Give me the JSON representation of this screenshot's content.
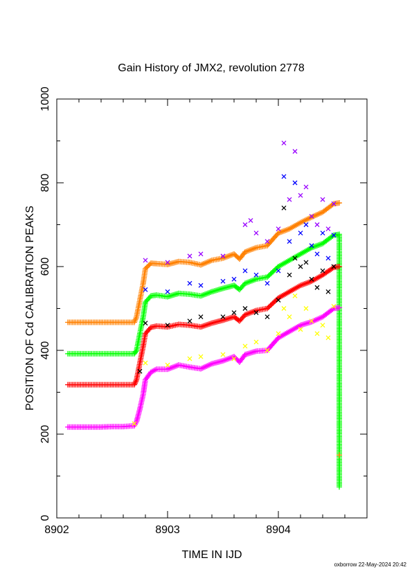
{
  "chart_data": {
    "type": "scatter",
    "title": "Gain History of JMX2, revolution 2778",
    "xlabel": "TIME IN IJD",
    "ylabel": "POSITION OF Cd CALIBRATION PEAKS",
    "xlim": [
      8902,
      8904.8
    ],
    "ylim": [
      0,
      1000
    ],
    "x_ticks": [
      "8902",
      "8903",
      "8904"
    ],
    "y_ticks": [
      "0",
      "200",
      "400",
      "600",
      "800",
      "1000"
    ],
    "grid": false,
    "legend": "none",
    "credit": "oxborrow 22-May-2024 20:42",
    "series": [
      {
        "color": "#ff8000",
        "marker": "plus",
        "points": [
          [
            8902.1,
            467
          ],
          [
            8902.2,
            467
          ],
          [
            8902.3,
            467
          ],
          [
            8902.4,
            467
          ],
          [
            8902.5,
            467
          ],
          [
            8902.6,
            467
          ],
          [
            8902.7,
            467
          ],
          [
            8902.72,
            480
          ],
          [
            8902.75,
            520
          ],
          [
            8902.78,
            560
          ],
          [
            8902.8,
            595
          ],
          [
            8902.85,
            608
          ],
          [
            8902.9,
            607
          ],
          [
            8903.0,
            605
          ],
          [
            8903.1,
            612
          ],
          [
            8903.2,
            610
          ],
          [
            8903.3,
            604
          ],
          [
            8903.4,
            615
          ],
          [
            8903.5,
            620
          ],
          [
            8903.6,
            630
          ],
          [
            8903.65,
            618
          ],
          [
            8903.7,
            635
          ],
          [
            8903.8,
            645
          ],
          [
            8903.9,
            650
          ],
          [
            8904.0,
            680
          ],
          [
            8904.1,
            690
          ],
          [
            8904.2,
            705
          ],
          [
            8904.3,
            718
          ],
          [
            8904.4,
            730
          ],
          [
            8904.5,
            750
          ],
          [
            8904.55,
            752
          ]
        ]
      },
      {
        "color": "#00ff00",
        "marker": "plus",
        "points": [
          [
            8902.1,
            392
          ],
          [
            8902.2,
            392
          ],
          [
            8902.3,
            392
          ],
          [
            8902.4,
            392
          ],
          [
            8902.5,
            392
          ],
          [
            8902.6,
            392
          ],
          [
            8902.7,
            392
          ],
          [
            8902.72,
            400
          ],
          [
            8902.75,
            440
          ],
          [
            8902.78,
            480
          ],
          [
            8902.8,
            515
          ],
          [
            8902.85,
            530
          ],
          [
            8902.9,
            532
          ],
          [
            8903.0,
            528
          ],
          [
            8903.1,
            536
          ],
          [
            8903.2,
            534
          ],
          [
            8903.3,
            530
          ],
          [
            8903.4,
            540
          ],
          [
            8903.5,
            548
          ],
          [
            8903.6,
            555
          ],
          [
            8903.65,
            545
          ],
          [
            8903.7,
            560
          ],
          [
            8903.8,
            570
          ],
          [
            8903.9,
            575
          ],
          [
            8904.0,
            600
          ],
          [
            8904.1,
            615
          ],
          [
            8904.2,
            630
          ],
          [
            8904.3,
            645
          ],
          [
            8904.4,
            655
          ],
          [
            8904.5,
            675
          ],
          [
            8904.55,
            677
          ],
          [
            8904.55,
            74
          ]
        ]
      },
      {
        "color": "#ff0000",
        "marker": "plus",
        "points": [
          [
            8902.1,
            318
          ],
          [
            8902.2,
            318
          ],
          [
            8902.3,
            318
          ],
          [
            8902.4,
            318
          ],
          [
            8902.5,
            318
          ],
          [
            8902.6,
            318
          ],
          [
            8902.7,
            318
          ],
          [
            8902.72,
            330
          ],
          [
            8902.75,
            370
          ],
          [
            8902.78,
            410
          ],
          [
            8902.8,
            440
          ],
          [
            8902.85,
            455
          ],
          [
            8902.9,
            458
          ],
          [
            8903.0,
            456
          ],
          [
            8903.1,
            462
          ],
          [
            8903.2,
            460
          ],
          [
            8903.3,
            456
          ],
          [
            8903.4,
            465
          ],
          [
            8903.5,
            472
          ],
          [
            8903.6,
            480
          ],
          [
            8903.65,
            470
          ],
          [
            8903.7,
            485
          ],
          [
            8903.8,
            495
          ],
          [
            8903.9,
            500
          ],
          [
            8904.0,
            525
          ],
          [
            8904.1,
            540
          ],
          [
            8904.2,
            555
          ],
          [
            8904.3,
            565
          ],
          [
            8904.4,
            580
          ],
          [
            8904.5,
            598
          ],
          [
            8904.55,
            600
          ]
        ]
      },
      {
        "color": "#ff00ff",
        "marker": "plus",
        "points": [
          [
            8902.1,
            217
          ],
          [
            8902.2,
            217
          ],
          [
            8902.3,
            217
          ],
          [
            8902.4,
            217
          ],
          [
            8902.5,
            218
          ],
          [
            8902.6,
            218
          ],
          [
            8902.7,
            220
          ],
          [
            8902.72,
            230
          ],
          [
            8902.75,
            260
          ],
          [
            8902.78,
            295
          ],
          [
            8902.8,
            330
          ],
          [
            8902.85,
            348
          ],
          [
            8902.9,
            355
          ],
          [
            8903.0,
            355
          ],
          [
            8903.1,
            365
          ],
          [
            8903.2,
            360
          ],
          [
            8903.3,
            356
          ],
          [
            8903.4,
            368
          ],
          [
            8903.5,
            375
          ],
          [
            8903.6,
            385
          ],
          [
            8903.65,
            372
          ],
          [
            8903.7,
            390
          ],
          [
            8903.8,
            398
          ],
          [
            8903.9,
            400
          ],
          [
            8904.0,
            430
          ],
          [
            8904.1,
            445
          ],
          [
            8904.2,
            460
          ],
          [
            8904.3,
            468
          ],
          [
            8904.4,
            480
          ],
          [
            8904.5,
            500
          ],
          [
            8904.55,
            502
          ]
        ]
      },
      {
        "color": "#9900ff",
        "marker": "cross",
        "points": [
          [
            8902.8,
            615
          ],
          [
            8903.0,
            610
          ],
          [
            8903.2,
            625
          ],
          [
            8903.3,
            630
          ],
          [
            8903.5,
            625
          ],
          [
            8903.7,
            700
          ],
          [
            8903.75,
            710
          ],
          [
            8903.8,
            680
          ],
          [
            8903.9,
            660
          ],
          [
            8904.0,
            690
          ],
          [
            8904.05,
            895
          ],
          [
            8904.1,
            760
          ],
          [
            8904.15,
            875
          ],
          [
            8904.2,
            770
          ],
          [
            8904.25,
            790
          ],
          [
            8904.3,
            720
          ],
          [
            8904.35,
            700
          ],
          [
            8904.4,
            760
          ],
          [
            8904.45,
            690
          ],
          [
            8904.5,
            750
          ]
        ]
      },
      {
        "color": "#0000ff",
        "marker": "cross",
        "points": [
          [
            8902.8,
            545
          ],
          [
            8903.0,
            540
          ],
          [
            8903.2,
            560
          ],
          [
            8903.3,
            555
          ],
          [
            8903.5,
            565
          ],
          [
            8903.6,
            570
          ],
          [
            8903.7,
            590
          ],
          [
            8903.8,
            580
          ],
          [
            8903.9,
            560
          ],
          [
            8904.0,
            590
          ],
          [
            8904.05,
            815
          ],
          [
            8904.1,
            660
          ],
          [
            8904.15,
            800
          ],
          [
            8904.2,
            680
          ],
          [
            8904.25,
            700
          ],
          [
            8904.3,
            650
          ],
          [
            8904.35,
            630
          ],
          [
            8904.4,
            680
          ],
          [
            8904.45,
            620
          ],
          [
            8904.5,
            675
          ]
        ]
      },
      {
        "color": "#000000",
        "marker": "cross",
        "points": [
          [
            8902.75,
            350
          ],
          [
            8902.8,
            465
          ],
          [
            8903.0,
            460
          ],
          [
            8903.2,
            470
          ],
          [
            8903.3,
            480
          ],
          [
            8903.5,
            480
          ],
          [
            8903.6,
            490
          ],
          [
            8903.7,
            500
          ],
          [
            8903.8,
            490
          ],
          [
            8903.9,
            480
          ],
          [
            8904.0,
            520
          ],
          [
            8904.05,
            740
          ],
          [
            8904.1,
            580
          ],
          [
            8904.15,
            620
          ],
          [
            8904.2,
            600
          ],
          [
            8904.25,
            610
          ],
          [
            8904.3,
            570
          ],
          [
            8904.35,
            550
          ],
          [
            8904.4,
            590
          ],
          [
            8904.45,
            540
          ],
          [
            8904.5,
            600
          ]
        ]
      },
      {
        "color": "#ffff00",
        "marker": "cross",
        "points": [
          [
            8902.7,
            225
          ],
          [
            8902.8,
            370
          ],
          [
            8903.0,
            365
          ],
          [
            8903.2,
            380
          ],
          [
            8903.3,
            385
          ],
          [
            8903.5,
            390
          ],
          [
            8903.6,
            380
          ],
          [
            8903.7,
            410
          ],
          [
            8903.8,
            420
          ],
          [
            8903.9,
            400
          ],
          [
            8904.0,
            440
          ],
          [
            8904.05,
            500
          ],
          [
            8904.1,
            480
          ],
          [
            8904.15,
            530
          ],
          [
            8904.2,
            450
          ],
          [
            8904.25,
            500
          ],
          [
            8904.3,
            470
          ],
          [
            8904.35,
            440
          ],
          [
            8904.4,
            460
          ],
          [
            8904.45,
            430
          ],
          [
            8904.5,
            505
          ]
        ]
      },
      {
        "color": "#ff8000",
        "marker": "plus",
        "points": [
          [
            8904.55,
            150
          ]
        ]
      }
    ]
  }
}
